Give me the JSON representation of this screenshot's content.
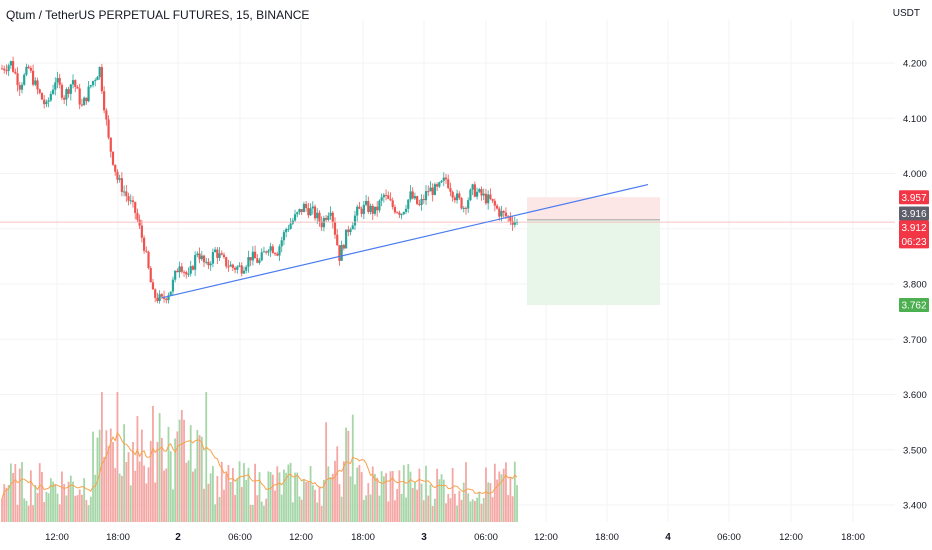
{
  "header": {
    "title": "Qtum / TetherUS PERPETUAL FUTURES, 15, BINANCE",
    "unit": "USDT"
  },
  "colors": {
    "up": "#26a69a",
    "down": "#ef5350",
    "up_volume": "#a5d6a7",
    "down_volume": "#f4a7a4",
    "volume_ma": "#f7a24b",
    "trendline": "#4a7cf0",
    "stop_zone": "#fde6e6",
    "target_zone": "#e8f5e9",
    "price_line": "#f7b0b0",
    "grid": "#f2f3f5"
  },
  "badges": {
    "stop": "3.957",
    "entry": "3.916",
    "last_price": "3.912",
    "countdown": "06:23",
    "target": "3.762"
  },
  "chart_data": {
    "type": "candlestick",
    "symbol": "QTUMUSDT",
    "interval": "15",
    "exchange": "BINANCE",
    "y_axis_ticks": [
      "4.200",
      "4.100",
      "4.000",
      "3.900",
      "3.800",
      "3.700",
      "3.600",
      "3.500",
      "3.400"
    ],
    "ylim": [
      3.38,
      4.27
    ],
    "x_axis_ticks": [
      {
        "label": "12:00",
        "bold": false
      },
      {
        "label": "18:00",
        "bold": false
      },
      {
        "label": "2",
        "bold": true
      },
      {
        "label": "06:00",
        "bold": false
      },
      {
        "label": "12:00",
        "bold": false
      },
      {
        "label": "18:00",
        "bold": false
      },
      {
        "label": "3",
        "bold": true
      },
      {
        "label": "06:00",
        "bold": false
      },
      {
        "label": "12:00",
        "bold": false
      },
      {
        "label": "18:00",
        "bold": false
      },
      {
        "label": "4",
        "bold": true
      },
      {
        "label": "06:00",
        "bold": false
      },
      {
        "label": "12:00",
        "bold": false
      },
      {
        "label": "18:00",
        "bold": false
      }
    ],
    "close_path": [
      [
        0,
        4.19
      ],
      [
        4,
        4.2
      ],
      [
        8,
        4.16
      ],
      [
        12,
        4.19
      ],
      [
        16,
        4.15
      ],
      [
        20,
        4.12
      ],
      [
        24,
        4.17
      ],
      [
        28,
        4.14
      ],
      [
        32,
        4.17
      ],
      [
        36,
        4.12
      ],
      [
        40,
        4.16
      ],
      [
        44,
        4.19
      ],
      [
        48,
        4.06
      ],
      [
        52,
        3.99
      ],
      [
        56,
        3.96
      ],
      [
        60,
        3.93
      ],
      [
        64,
        3.87
      ],
      [
        68,
        3.78
      ],
      [
        72,
        3.77
      ],
      [
        76,
        3.79
      ],
      [
        80,
        3.84
      ],
      [
        84,
        3.81
      ],
      [
        88,
        3.86
      ],
      [
        92,
        3.83
      ],
      [
        96,
        3.86
      ],
      [
        100,
        3.84
      ],
      [
        104,
        3.83
      ],
      [
        108,
        3.83
      ],
      [
        112,
        3.85
      ],
      [
        116,
        3.84
      ],
      [
        120,
        3.87
      ],
      [
        124,
        3.86
      ],
      [
        128,
        3.9
      ],
      [
        132,
        3.92
      ],
      [
        136,
        3.94
      ],
      [
        140,
        3.93
      ],
      [
        144,
        3.91
      ],
      [
        148,
        3.94
      ],
      [
        152,
        3.85
      ],
      [
        156,
        3.9
      ],
      [
        160,
        3.93
      ],
      [
        164,
        3.94
      ],
      [
        168,
        3.93
      ],
      [
        172,
        3.96
      ],
      [
        176,
        3.94
      ],
      [
        180,
        3.93
      ],
      [
        184,
        3.96
      ],
      [
        188,
        3.94
      ],
      [
        192,
        3.97
      ],
      [
        196,
        3.97
      ],
      [
        200,
        3.99
      ],
      [
        204,
        3.96
      ],
      [
        208,
        3.94
      ],
      [
        212,
        3.97
      ],
      [
        216,
        3.96
      ],
      [
        220,
        3.95
      ],
      [
        224,
        3.93
      ],
      [
        228,
        3.92
      ],
      [
        232,
        3.912
      ]
    ],
    "last_price": 3.912,
    "volume_max_label": "",
    "overlays": {
      "trendline": {
        "from": [
          72,
          3.775
        ],
        "to": [
          293,
          3.98
        ]
      },
      "short_position": {
        "start": 232,
        "end": 296,
        "entry": 3.916,
        "stop": 3.957,
        "target": 3.762
      }
    }
  }
}
